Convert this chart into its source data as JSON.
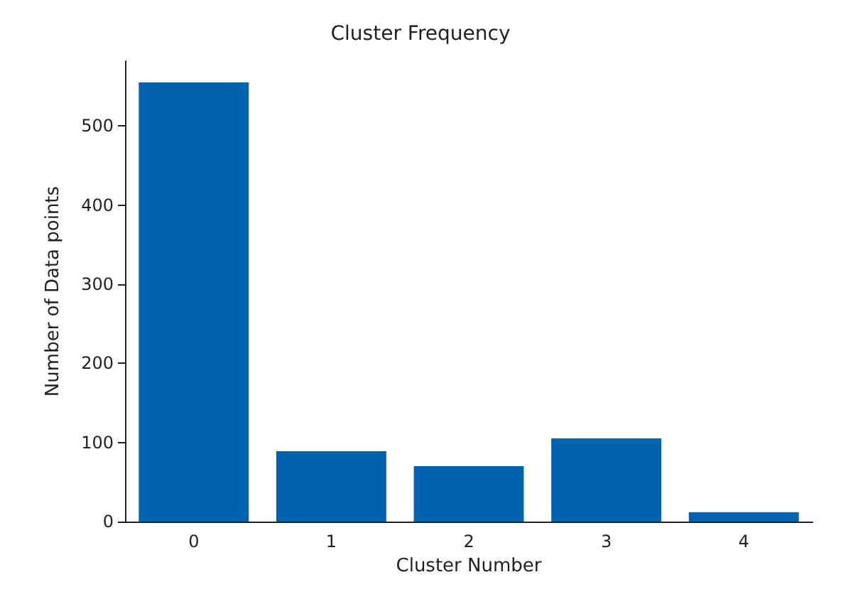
{
  "chart_data": {
    "type": "bar",
    "title": "Cluster Frequency",
    "xlabel": "Cluster Number",
    "ylabel": "Number of Data points",
    "categories": [
      "0",
      "1",
      "2",
      "3",
      "4"
    ],
    "values": [
      555,
      89,
      70,
      105,
      12
    ],
    "color": "#0063b1",
    "ylim": [
      0,
      582
    ],
    "yticks": [
      0,
      100,
      200,
      300,
      400,
      500
    ],
    "grid": false
  }
}
